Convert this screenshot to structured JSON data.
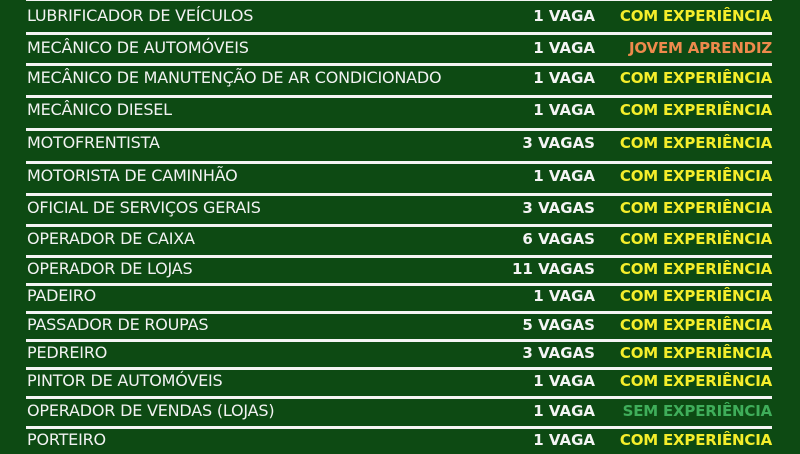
{
  "colors": {
    "background": "#0d4a13",
    "com_experiencia": "#f5ee2b",
    "jovem_aprendiz": "#ee8a4c",
    "sem_experiencia": "#3fae5a"
  },
  "jobs": [
    {
      "title": "LUBRIFICADOR DE VEÍCULOS",
      "vacancies": "1 VAGA",
      "requirement": "COM EXPERIÊNCIA",
      "color": "#f5ee2b"
    },
    {
      "title": "MECÂNICO DE AUTOMÓVEIS",
      "vacancies": "1 VAGA",
      "requirement": "JOVEM APRENDIZ",
      "color": "#ee8a4c"
    },
    {
      "title": "MECÂNICO DE MANUTENÇÃO DE AR CONDICIONADO",
      "vacancies": "1 VAGA",
      "requirement": "COM EXPERIÊNCIA",
      "color": "#f5ee2b"
    },
    {
      "title": "MECÂNICO DIESEL",
      "vacancies": "1 VAGA",
      "requirement": "COM EXPERIÊNCIA",
      "color": "#f5ee2b"
    },
    {
      "title": "MOTOFRENTISTA",
      "vacancies": "3 VAGAS",
      "requirement": "COM EXPERIÊNCIA",
      "color": "#f5ee2b"
    },
    {
      "title": "MOTORISTA DE CAMINHÃO",
      "vacancies": "1 VAGA",
      "requirement": "COM EXPERIÊNCIA",
      "color": "#f5ee2b"
    },
    {
      "title": "OFICIAL DE SERVIÇOS GERAIS",
      "vacancies": "3 VAGAS",
      "requirement": "COM EXPERIÊNCIA",
      "color": "#f5ee2b"
    },
    {
      "title": "OPERADOR DE CAIXA",
      "vacancies": "6 VAGAS",
      "requirement": "COM EXPERIÊNCIA",
      "color": "#f5ee2b"
    },
    {
      "title": "OPERADOR DE LOJAS",
      "vacancies": "11 VAGAS",
      "requirement": "COM EXPERIÊNCIA",
      "color": "#f5ee2b"
    },
    {
      "title": "PADEIRO",
      "vacancies": "1 VAGA",
      "requirement": "COM EXPERIÊNCIA",
      "color": "#f5ee2b"
    },
    {
      "title": "PASSADOR DE ROUPAS",
      "vacancies": "5 VAGAS",
      "requirement": "COM EXPERIÊNCIA",
      "color": "#f5ee2b"
    },
    {
      "title": "PEDREIRO",
      "vacancies": "3 VAGAS",
      "requirement": "COM EXPERIÊNCIA",
      "color": "#f5ee2b"
    },
    {
      "title": "PINTOR DE AUTOMÓVEIS",
      "vacancies": "1 VAGA",
      "requirement": "COM EXPERIÊNCIA",
      "color": "#f5ee2b"
    },
    {
      "title": "OPERADOR DE VENDAS (LOJAS)",
      "vacancies": "1 VAGA",
      "requirement": "SEM EXPERIÊNCIA",
      "color": "#3fae5a"
    },
    {
      "title": "PORTEIRO",
      "vacancies": "1 VAGA",
      "requirement": "COM EXPERIÊNCIA",
      "color": "#f5ee2b"
    }
  ]
}
